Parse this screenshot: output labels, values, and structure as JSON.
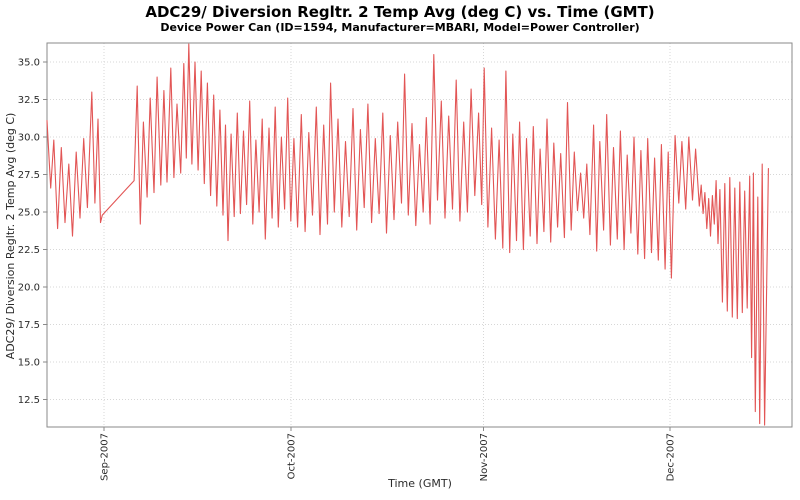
{
  "chart_data": {
    "type": "line",
    "title": "ADC29/ Diversion Regltr. 2 Temp Avg (deg C) vs. Time (GMT)",
    "subtitle": "Device Power Can (ID=1594, Manufacturer=MBARI, Model=Power Controller)",
    "xlabel": "Time (GMT)",
    "ylabel": "ADC29/ Diversion Regltr. 2 Temp Avg (deg C)",
    "legend": "none",
    "grid": true,
    "x_unit": "days since 2007-08-23 (GMT)",
    "x_range": [
      0,
      119.8
    ],
    "y_range": [
      10.67,
      36.27
    ],
    "y_ticks": [
      12.5,
      15.0,
      17.5,
      20.0,
      22.5,
      25.0,
      27.5,
      30.0,
      32.5,
      35.0
    ],
    "x_ticks": [
      {
        "label": "Sep-2007",
        "day": 9.2
      },
      {
        "label": "Oct-2007",
        "day": 39.2
      },
      {
        "label": "Nov-2007",
        "day": 70.2
      },
      {
        "label": "Dec-2007",
        "day": 100.2
      }
    ],
    "colors": {
      "line": "#e25555",
      "grid": "#d7d7d7",
      "border": "#8a8a8a",
      "text": "#000000",
      "background": "#ffffff"
    },
    "series": [
      {
        "name": "ADC29/ Diversion Regltr. 2 Temp Avg (deg C)",
        "color": "#e25555",
        "points": [
          [
            0,
            31.1
          ],
          [
            0.6,
            26.6
          ],
          [
            1.1,
            29.8
          ],
          [
            1.7,
            23.9
          ],
          [
            2.3,
            29.3
          ],
          [
            2.9,
            24.3
          ],
          [
            3.5,
            28.2
          ],
          [
            4.1,
            23.4
          ],
          [
            4.7,
            29.0
          ],
          [
            5.3,
            24.6
          ],
          [
            5.9,
            29.9
          ],
          [
            6.5,
            25.3
          ],
          [
            7.2,
            33.0
          ],
          [
            7.7,
            25.6
          ],
          [
            8.2,
            31.2
          ],
          [
            8.6,
            24.3
          ],
          [
            8.9,
            24.8
          ],
          [
            14.0,
            27.1
          ],
          [
            14.5,
            33.4
          ],
          [
            15.0,
            24.2
          ],
          [
            15.5,
            31.0
          ],
          [
            16.1,
            26.0
          ],
          [
            16.6,
            32.6
          ],
          [
            17.2,
            26.3
          ],
          [
            17.7,
            34.0
          ],
          [
            18.3,
            26.8
          ],
          [
            18.8,
            33.1
          ],
          [
            19.3,
            27.0
          ],
          [
            19.9,
            34.6
          ],
          [
            20.4,
            27.3
          ],
          [
            20.9,
            32.2
          ],
          [
            21.5,
            27.6
          ],
          [
            22.0,
            34.9
          ],
          [
            22.4,
            28.6
          ],
          [
            22.8,
            36.2
          ],
          [
            23.3,
            28.2
          ],
          [
            23.8,
            35.0
          ],
          [
            24.3,
            27.8
          ],
          [
            24.8,
            34.4
          ],
          [
            25.3,
            26.9
          ],
          [
            25.8,
            33.6
          ],
          [
            26.3,
            26.1
          ],
          [
            26.8,
            32.8
          ],
          [
            27.3,
            25.4
          ],
          [
            27.8,
            31.8
          ],
          [
            28.3,
            24.8
          ],
          [
            28.7,
            30.8
          ],
          [
            29.1,
            23.1
          ],
          [
            29.6,
            30.2
          ],
          [
            30.1,
            24.7
          ],
          [
            30.6,
            31.6
          ],
          [
            31.1,
            24.9
          ],
          [
            31.6,
            30.4
          ],
          [
            32.1,
            25.5
          ],
          [
            32.6,
            32.4
          ],
          [
            33.1,
            24.2
          ],
          [
            33.6,
            29.8
          ],
          [
            34.1,
            25.0
          ],
          [
            34.6,
            31.2
          ],
          [
            35.1,
            23.2
          ],
          [
            35.7,
            30.6
          ],
          [
            36.2,
            24.6
          ],
          [
            36.7,
            32.0
          ],
          [
            37.2,
            24.0
          ],
          [
            37.7,
            30.0
          ],
          [
            38.2,
            25.2
          ],
          [
            38.7,
            32.6
          ],
          [
            39.2,
            24.4
          ],
          [
            39.7,
            29.9
          ],
          [
            40.3,
            24.0
          ],
          [
            40.9,
            31.5
          ],
          [
            41.5,
            23.7
          ],
          [
            42.1,
            30.3
          ],
          [
            42.7,
            24.8
          ],
          [
            43.3,
            32.0
          ],
          [
            43.9,
            23.5
          ],
          [
            44.5,
            30.8
          ],
          [
            45.1,
            24.2
          ],
          [
            45.6,
            33.6
          ],
          [
            46.2,
            25.0
          ],
          [
            46.8,
            31.2
          ],
          [
            47.4,
            24.0
          ],
          [
            48.0,
            29.7
          ],
          [
            48.6,
            24.7
          ],
          [
            49.2,
            31.9
          ],
          [
            49.8,
            23.8
          ],
          [
            50.4,
            30.5
          ],
          [
            51.0,
            25.3
          ],
          [
            51.6,
            32.2
          ],
          [
            52.2,
            24.3
          ],
          [
            52.8,
            29.9
          ],
          [
            53.4,
            24.9
          ],
          [
            54.0,
            31.6
          ],
          [
            54.6,
            23.6
          ],
          [
            55.2,
            30.1
          ],
          [
            55.8,
            24.5
          ],
          [
            56.4,
            31.0
          ],
          [
            57.0,
            25.6
          ],
          [
            57.5,
            34.2
          ],
          [
            58.1,
            24.8
          ],
          [
            58.7,
            30.9
          ],
          [
            59.3,
            24.1
          ],
          [
            59.9,
            29.5
          ],
          [
            60.5,
            25.0
          ],
          [
            61.0,
            31.3
          ],
          [
            61.6,
            24.2
          ],
          [
            62.2,
            35.5
          ],
          [
            62.8,
            25.8
          ],
          [
            63.4,
            32.4
          ],
          [
            64.0,
            24.6
          ],
          [
            64.6,
            31.4
          ],
          [
            65.2,
            25.2
          ],
          [
            65.8,
            33.8
          ],
          [
            66.4,
            24.4
          ],
          [
            67.0,
            31.0
          ],
          [
            67.6,
            25.0
          ],
          [
            68.2,
            33.2
          ],
          [
            68.8,
            26.1
          ],
          [
            69.4,
            31.6
          ],
          [
            69.9,
            25.5
          ],
          [
            70.3,
            34.6
          ],
          [
            70.9,
            24.0
          ],
          [
            71.5,
            30.6
          ],
          [
            72.1,
            23.2
          ],
          [
            72.7,
            29.8
          ],
          [
            73.3,
            22.6
          ],
          [
            73.8,
            34.4
          ],
          [
            74.4,
            22.3
          ],
          [
            74.9,
            30.2
          ],
          [
            75.5,
            23.1
          ],
          [
            76.0,
            31.0
          ],
          [
            76.6,
            22.5
          ],
          [
            77.1,
            29.9
          ],
          [
            77.7,
            23.4
          ],
          [
            78.2,
            30.7
          ],
          [
            78.8,
            22.9
          ],
          [
            79.3,
            29.2
          ],
          [
            79.9,
            23.7
          ],
          [
            80.4,
            31.2
          ],
          [
            81.0,
            23.0
          ],
          [
            81.5,
            29.6
          ],
          [
            82.1,
            24.0
          ],
          [
            82.6,
            28.9
          ],
          [
            83.2,
            23.3
          ],
          [
            83.7,
            32.3
          ],
          [
            84.3,
            23.8
          ],
          [
            84.8,
            29.0
          ],
          [
            85.3,
            25.1
          ],
          [
            85.8,
            27.6
          ],
          [
            86.3,
            24.6
          ],
          [
            86.8,
            28.2
          ],
          [
            87.3,
            23.5
          ],
          [
            87.9,
            30.8
          ],
          [
            88.4,
            22.4
          ],
          [
            88.9,
            29.7
          ],
          [
            89.5,
            23.8
          ],
          [
            90.0,
            31.5
          ],
          [
            90.6,
            22.8
          ],
          [
            91.1,
            29.3
          ],
          [
            91.7,
            23.2
          ],
          [
            92.2,
            30.4
          ],
          [
            92.8,
            22.5
          ],
          [
            93.3,
            28.8
          ],
          [
            93.9,
            23.6
          ],
          [
            94.4,
            30.0
          ],
          [
            95.0,
            22.2
          ],
          [
            95.5,
            29.1
          ],
          [
            96.1,
            21.9
          ],
          [
            96.6,
            29.9
          ],
          [
            97.2,
            22.3
          ],
          [
            97.7,
            28.6
          ],
          [
            98.3,
            21.8
          ],
          [
            98.8,
            29.5
          ],
          [
            99.4,
            21.2
          ],
          [
            99.9,
            29.0
          ],
          [
            100.4,
            20.6
          ],
          [
            101.0,
            30.1
          ],
          [
            101.6,
            25.6
          ],
          [
            102.1,
            29.7
          ],
          [
            102.7,
            25.2
          ],
          [
            103.2,
            30.0
          ],
          [
            103.8,
            25.8
          ],
          [
            104.3,
            29.2
          ],
          [
            104.9,
            25.4
          ],
          [
            105.2,
            26.8
          ],
          [
            105.5,
            24.9
          ],
          [
            105.8,
            26.3
          ],
          [
            106.1,
            23.9
          ],
          [
            106.4,
            25.9
          ],
          [
            106.7,
            23.4
          ],
          [
            107.0,
            26.1
          ],
          [
            107.3,
            24.2
          ],
          [
            107.6,
            27.1
          ],
          [
            107.9,
            22.9
          ],
          [
            108.2,
            26.5
          ],
          [
            108.6,
            19.0
          ],
          [
            109.0,
            26.9
          ],
          [
            109.4,
            18.4
          ],
          [
            109.8,
            27.3
          ],
          [
            110.2,
            18.0
          ],
          [
            110.6,
            26.6
          ],
          [
            111.0,
            17.9
          ],
          [
            111.4,
            27.0
          ],
          [
            111.8,
            18.3
          ],
          [
            112.2,
            26.4
          ],
          [
            112.6,
            18.6
          ],
          [
            113.0,
            27.4
          ],
          [
            113.3,
            15.3
          ],
          [
            113.6,
            27.6
          ],
          [
            113.9,
            11.7
          ],
          [
            114.3,
            26.0
          ],
          [
            114.6,
            10.9
          ],
          [
            115.0,
            28.2
          ],
          [
            115.4,
            10.8
          ],
          [
            116.0,
            27.9
          ]
        ]
      }
    ]
  }
}
